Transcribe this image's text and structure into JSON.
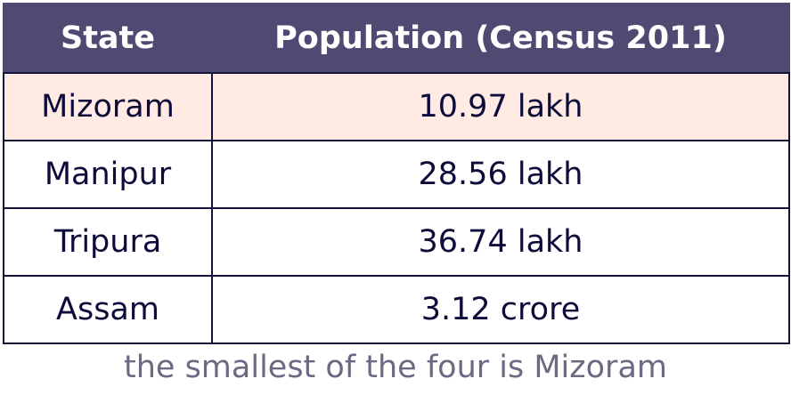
{
  "table": {
    "headers": [
      "State",
      "Population (Census 2011)"
    ],
    "rows": [
      {
        "state": "Mizoram",
        "population": "10.97 lakh",
        "highlighted": true
      },
      {
        "state": "Manipur",
        "population": "28.56 lakh",
        "highlighted": false
      },
      {
        "state": "Tripura",
        "population": "36.74 lakh",
        "highlighted": false
      },
      {
        "state": "Assam",
        "population": "3.12 crore",
        "highlighted": false
      }
    ]
  },
  "caption": "the smallest of the four is Mizoram",
  "colors": {
    "header_bg": "#4e4a72",
    "highlight_bg": "#ffebe4",
    "text": "#0d0b3a",
    "caption": "#6c6a82"
  }
}
